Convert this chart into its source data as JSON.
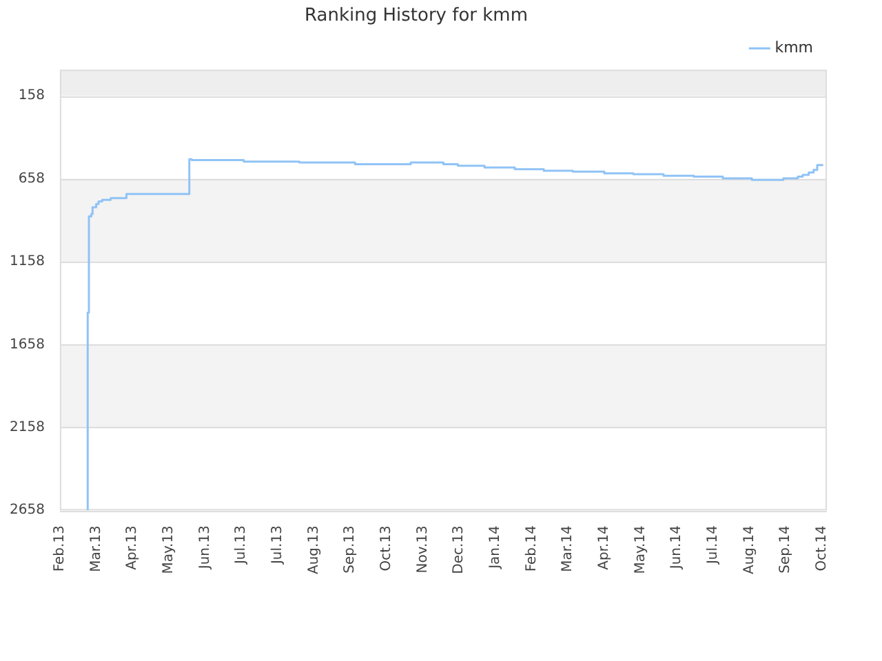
{
  "chart_data": {
    "type": "step",
    "title": "Ranking History for kmm",
    "series": [
      {
        "name": "kmm",
        "color": "#90c3f5",
        "x": [
          "2013-02-24",
          "2013-02-24",
          "2013-02-25",
          "2013-02-27",
          "2013-02-28",
          "2013-03-03",
          "2013-03-05",
          "2013-03-08",
          "2013-03-15",
          "2013-03-28",
          "2013-05-19",
          "2013-05-21",
          "2013-07-03",
          "2013-08-18",
          "2013-10-03",
          "2013-11-18",
          "2013-12-15",
          "2013-12-27",
          "2014-01-18",
          "2014-02-12",
          "2014-03-08",
          "2014-04-01",
          "2014-04-27",
          "2014-05-21",
          "2014-06-15",
          "2014-07-10",
          "2014-08-03",
          "2014-08-27",
          "2014-09-22",
          "2014-10-04",
          "2014-10-08",
          "2014-10-13",
          "2014-10-17",
          "2014-10-20",
          "2014-10-24",
          "2014-10-25"
        ],
        "values": [
          2658,
          2260,
          1465,
          885,
          870,
          830,
          810,
          795,
          785,
          775,
          750,
          540,
          545,
          555,
          560,
          570,
          560,
          570,
          580,
          590,
          600,
          610,
          615,
          625,
          630,
          640,
          645,
          655,
          665,
          655,
          645,
          635,
          620,
          605,
          575,
          575
        ]
      }
    ],
    "xlim": [
      "2013-02-01",
      "2014-10-28"
    ],
    "xticks": [
      {
        "value": "2013-02-01",
        "label": "Feb.13"
      },
      {
        "value": "2013-03-03",
        "label": "Mar.13"
      },
      {
        "value": "2013-04-02",
        "label": "Apr.13"
      },
      {
        "value": "2013-05-02",
        "label": "May.13"
      },
      {
        "value": "2013-06-01",
        "label": "Jun.13"
      },
      {
        "value": "2013-07-01",
        "label": "Jul.13"
      },
      {
        "value": "2013-07-31",
        "label": "Jul.13"
      },
      {
        "value": "2013-08-30",
        "label": "Aug.13"
      },
      {
        "value": "2013-09-29",
        "label": "Sep.13"
      },
      {
        "value": "2013-10-29",
        "label": "Oct.13"
      },
      {
        "value": "2013-11-28",
        "label": "Nov.13"
      },
      {
        "value": "2013-12-28",
        "label": "Dec.13"
      },
      {
        "value": "2014-01-27",
        "label": "Jan.14"
      },
      {
        "value": "2014-02-26",
        "label": "Feb.14"
      },
      {
        "value": "2014-03-28",
        "label": "Mar.14"
      },
      {
        "value": "2014-04-27",
        "label": "Apr.14"
      },
      {
        "value": "2014-05-27",
        "label": "May.14"
      },
      {
        "value": "2014-06-26",
        "label": "Jun.14"
      },
      {
        "value": "2014-07-26",
        "label": "Jul.14"
      },
      {
        "value": "2014-08-25",
        "label": "Aug.14"
      },
      {
        "value": "2014-09-24",
        "label": "Sep.14"
      },
      {
        "value": "2014-10-24",
        "label": "Oct.14"
      }
    ],
    "ylim": [
      2658,
      0
    ],
    "yticks": [
      158,
      658,
      1158,
      1658,
      2158,
      2658
    ],
    "bands": [
      {
        "axis": "y",
        "from": 0,
        "to": 158,
        "color": "#eeeeee"
      },
      {
        "axis": "y",
        "from": 658,
        "to": 1158,
        "color": "#f3f3f3"
      },
      {
        "axis": "y",
        "from": 1658,
        "to": 2158,
        "color": "#f3f3f3"
      }
    ],
    "grid": "y",
    "legend": "top right",
    "line_style": "solid",
    "marker": "none"
  }
}
